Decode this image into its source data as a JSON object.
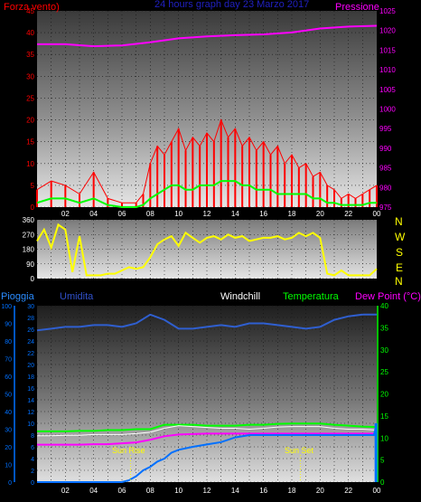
{
  "colors": {
    "wind": "#ff0000",
    "gust_avg": "#00ff00",
    "pressure": "#ff00ff",
    "direction": "#ffff00",
    "rain": "#0070ff",
    "humidity": "#2f5fd0",
    "windchill": "#ffffff",
    "temperature": "#00ff00",
    "dewpoint": "#ff00ff",
    "sun_marker": "#ffff00"
  },
  "header": {
    "left_label": "Forza vento)",
    "title": "24 hours graph day  23 Marzo 2017",
    "right_label": "Pressione"
  },
  "compass": [
    "N",
    "W",
    "S",
    "E",
    "N"
  ],
  "legend2": {
    "rain": "Pioggia",
    "humidity": "Umidita",
    "windchill": "Windchill",
    "temperature": "Temperatura",
    "dewpoint": "Dew Point (°C)"
  },
  "sun": {
    "rise": "Sun Rise",
    "set": "Sun Set"
  },
  "chart_data": [
    {
      "type": "line",
      "title": "24 hours graph day  23 Marzo 2017",
      "x_ticks": [
        "02",
        "04",
        "06",
        "08",
        "10",
        "12",
        "14",
        "16",
        "18",
        "20",
        "22",
        "00"
      ],
      "y_left": {
        "label": "Forza vento)",
        "ylim": [
          0,
          45
        ],
        "ticks": [
          "0",
          "5",
          "10",
          "15",
          "20",
          "25",
          "30",
          "35",
          "40",
          "45"
        ]
      },
      "y_right": {
        "label": "Pressione",
        "ylim": [
          975,
          1025
        ],
        "ticks": [
          "975",
          "980",
          "985",
          "990",
          "995",
          "1000",
          "1005",
          "1010",
          "1015",
          "1020",
          "1025"
        ]
      },
      "grid": true,
      "series": [
        {
          "axis": "left",
          "hours": [
            0,
            1,
            2,
            3,
            4,
            5,
            6,
            7,
            7.5,
            8,
            8.5,
            9,
            9.5,
            10,
            10.5,
            11,
            11.5,
            12,
            12.5,
            13,
            13.5,
            14,
            14.5,
            15,
            15.5,
            16,
            16.5,
            17,
            17.5,
            18,
            18.5,
            19,
            19.5,
            20,
            20.5,
            21,
            21.5,
            22,
            22.5,
            23,
            23.5,
            24
          ],
          "values": [
            4,
            6,
            5,
            3,
            8,
            2,
            1,
            1,
            3,
            10,
            14,
            12,
            15,
            18,
            13,
            16,
            14,
            17,
            15,
            20,
            16,
            18,
            14,
            16,
            13,
            15,
            12,
            14,
            10,
            12,
            9,
            10,
            7,
            8,
            5,
            4,
            2,
            3,
            2,
            3,
            4,
            5
          ]
        },
        {
          "axis": "left",
          "hours": [
            0,
            1,
            2,
            3,
            4,
            5,
            6,
            7,
            7.5,
            8,
            8.5,
            9,
            9.5,
            10,
            10.5,
            11,
            11.5,
            12,
            12.5,
            13,
            13.5,
            14,
            14.5,
            15,
            15.5,
            16,
            16.5,
            17,
            17.5,
            18,
            18.5,
            19,
            19.5,
            20,
            20.5,
            21,
            21.5,
            22,
            22.5,
            23,
            23.5,
            24
          ],
          "values": [
            1,
            2,
            2,
            1,
            2,
            0.5,
            0,
            0,
            0.5,
            2,
            3,
            4,
            5,
            5,
            4,
            4,
            5,
            5,
            5,
            6,
            6,
            6,
            5,
            5,
            4,
            4,
            4,
            3,
            3,
            3,
            3,
            3,
            2,
            2,
            1,
            1,
            0.5,
            0.5,
            0.5,
            0.5,
            1,
            1
          ]
        },
        {
          "axis": "right",
          "hours": [
            0,
            2,
            4,
            6,
            8,
            10,
            12,
            14,
            16,
            18,
            20,
            22,
            24
          ],
          "values": [
            1016.5,
            1016.5,
            1016,
            1016.2,
            1017,
            1018,
            1018.5,
            1018.8,
            1019,
            1019.5,
            1020.5,
            1021,
            1021.2
          ]
        }
      ]
    },
    {
      "type": "line",
      "title": "",
      "y_left": {
        "label": "",
        "ylim": [
          0,
          360
        ],
        "ticks": [
          "0",
          "90",
          "180",
          "270",
          "360"
        ]
      },
      "y_right": {
        "label": "",
        "ticks": [
          "N",
          "W",
          "S",
          "E",
          "N"
        ]
      },
      "grid": true,
      "series": [
        {
          "hours": [
            0,
            0.5,
            1,
            1.5,
            2,
            2.5,
            3,
            3.5,
            4,
            4.5,
            5,
            5.5,
            6,
            6.5,
            7,
            7.5,
            8,
            8.5,
            9,
            9.5,
            10,
            10.5,
            11,
            11.5,
            12,
            12.5,
            13,
            13.5,
            14,
            14.5,
            15,
            15.5,
            16,
            16.5,
            17,
            17.5,
            18,
            18.5,
            19,
            19.5,
            20,
            20.5,
            21,
            21.5,
            22,
            22.5,
            23,
            23.5,
            24
          ],
          "values": [
            230,
            300,
            190,
            330,
            300,
            40,
            260,
            20,
            20,
            20,
            30,
            30,
            50,
            70,
            60,
            70,
            130,
            210,
            240,
            260,
            200,
            280,
            250,
            220,
            250,
            260,
            240,
            270,
            250,
            260,
            230,
            240,
            250,
            250,
            260,
            240,
            250,
            280,
            260,
            280,
            250,
            30,
            20,
            50,
            20,
            20,
            20,
            20,
            60
          ]
        }
      ]
    },
    {
      "type": "line",
      "title": "",
      "x_ticks": [
        "02",
        "04",
        "06",
        "08",
        "10",
        "12",
        "14",
        "16",
        "18",
        "20",
        "22",
        "00"
      ],
      "y_left_outer": {
        "label": "Pioggia",
        "ylim": [
          0,
          100
        ],
        "ticks": [
          "0",
          "10",
          "20",
          "30",
          "40",
          "50",
          "60",
          "70",
          "80",
          "90",
          "100"
        ]
      },
      "y_left_inner": {
        "label": "Umidita",
        "ylim": [
          0,
          30
        ],
        "ticks": [
          "0",
          "2",
          "4",
          "6",
          "8",
          "10",
          "12",
          "14",
          "16",
          "18",
          "20",
          "22",
          "24",
          "26",
          "28",
          "30"
        ]
      },
      "y_right": {
        "label": "Dew Point (°C)",
        "ylim": [
          0,
          40
        ],
        "ticks": [
          "0",
          "5",
          "10",
          "15",
          "20",
          "25",
          "30",
          "35",
          "40"
        ]
      },
      "grid": true,
      "series": [
        {
          "name": "Umidita",
          "axis": "outer",
          "hours": [
            0,
            1,
            2,
            3,
            4,
            5,
            6,
            7,
            8,
            9,
            10,
            11,
            12,
            13,
            14,
            15,
            16,
            17,
            18,
            19,
            20,
            21,
            22,
            23,
            24
          ],
          "values": [
            86,
            87,
            88,
            88,
            89,
            89,
            88,
            90,
            95,
            92,
            87,
            87,
            88,
            89,
            88,
            90,
            90,
            89,
            88,
            87,
            88,
            92,
            94,
            95,
            95
          ]
        },
        {
          "name": "Temperatura",
          "axis": "right",
          "hours": [
            0,
            1,
            2,
            3,
            4,
            5,
            6,
            7,
            8,
            9,
            10,
            11,
            12,
            13,
            14,
            15,
            16,
            17,
            18,
            19,
            20,
            21,
            22,
            23,
            24
          ],
          "values": [
            11.5,
            11.5,
            11.5,
            11.6,
            11.6,
            11.8,
            11.8,
            12,
            12,
            13,
            13,
            13,
            12.8,
            12.8,
            12.8,
            13,
            13,
            13.2,
            13.3,
            13.3,
            13.3,
            13,
            12.8,
            12.6,
            12.5
          ]
        },
        {
          "name": "Windchill",
          "axis": "right",
          "hours": [
            0,
            1,
            2,
            3,
            4,
            5,
            6,
            7,
            8,
            9,
            10,
            11,
            12,
            13,
            14,
            15,
            16,
            17,
            18,
            19,
            20,
            21,
            22,
            23,
            24
          ],
          "values": [
            10.5,
            10.5,
            10.6,
            10.6,
            10.8,
            10.8,
            10.8,
            11,
            11.3,
            12.2,
            12.8,
            12.6,
            12.4,
            12.2,
            12.2,
            12,
            12.2,
            12.5,
            12.6,
            12.6,
            12.6,
            12.2,
            12,
            12,
            11.8
          ]
        },
        {
          "name": "Dew Point (°C)",
          "axis": "right",
          "hours": [
            0,
            1,
            2,
            3,
            4,
            5,
            6,
            7,
            8,
            9,
            10,
            11,
            12,
            13,
            14,
            15,
            16,
            17,
            18,
            19,
            20,
            21,
            22,
            23,
            24
          ],
          "values": [
            8.5,
            8.5,
            8.5,
            8.5,
            8.6,
            8.6,
            8.8,
            9,
            9.6,
            10.4,
            10.8,
            10.9,
            11,
            11,
            11,
            11,
            11,
            11,
            11,
            11,
            11,
            11,
            11,
            11,
            11
          ]
        },
        {
          "name": "Pioggia",
          "axis": "inner",
          "hours": [
            0,
            2,
            4,
            6,
            6.5,
            7,
            7.5,
            8,
            8.5,
            9,
            9.5,
            10,
            11,
            12,
            13,
            14,
            15,
            17,
            20,
            22,
            23.8,
            24
          ],
          "values": [
            0,
            0,
            0,
            0,
            0.3,
            1,
            2,
            2.6,
            3.5,
            4,
            5,
            5.5,
            6,
            6.4,
            6.8,
            7.6,
            8,
            8,
            8,
            8,
            8,
            10
          ]
        }
      ],
      "markers": [
        {
          "label": "Sun Rise",
          "hour": 6.6
        },
        {
          "label": "Sun Set",
          "hour": 18.6
        }
      ]
    }
  ]
}
